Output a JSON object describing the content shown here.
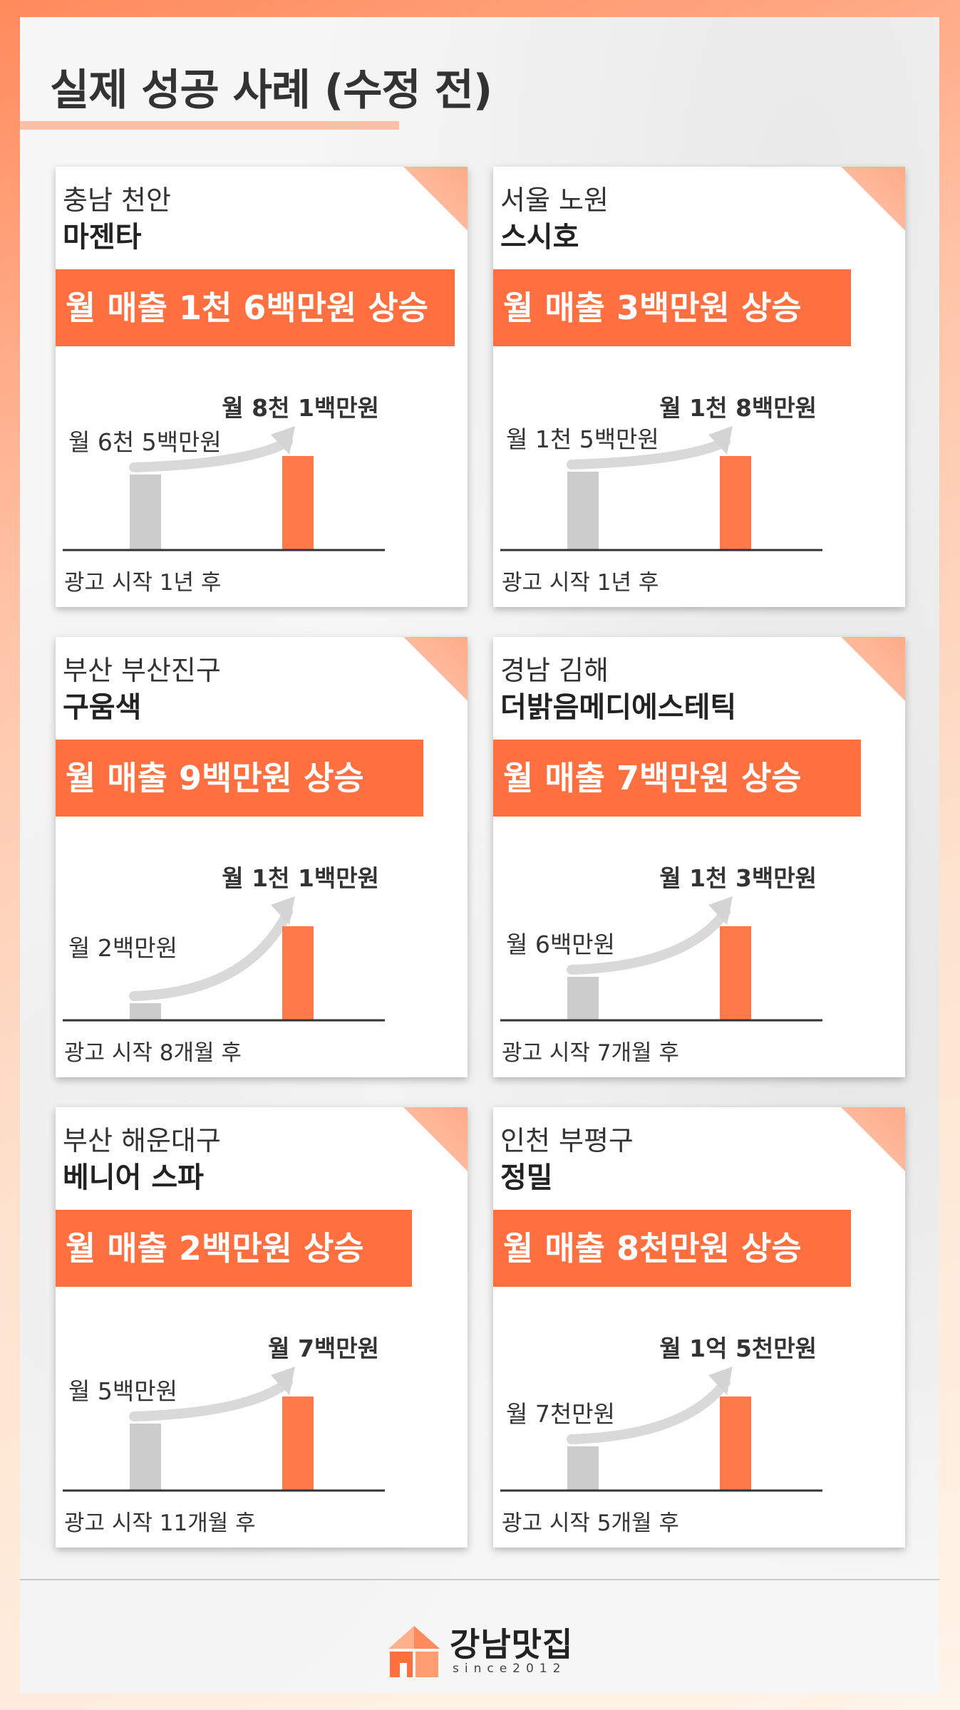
{
  "page": {
    "title": "실제 성공 사례 (수정 전)"
  },
  "colors": {
    "accent": "#ff6f3f",
    "accent_light": "#ffb99c",
    "bar_before": "#cccccc",
    "bar_after": "#ff7a4a"
  },
  "cards": [
    {
      "location": "충남 천안",
      "business": "마젠타",
      "headline": "월 매출 1천 6백만원 상승",
      "before_label": "월 6천 5백만원",
      "after_label": "월 8천 1백만원",
      "before_value": 6500,
      "after_value": 8100,
      "period": "광고 시작 1년 후"
    },
    {
      "location": "서울 노원",
      "business": "스시호",
      "headline": "월 매출 3백만원 상승",
      "before_label": "월 1천 5백만원",
      "after_label": "월 1천 8백만원",
      "before_value": 1500,
      "after_value": 1800,
      "period": "광고 시작 1년 후"
    },
    {
      "location": "부산 부산진구",
      "business": "구움색",
      "headline": "월 매출 9백만원 상승",
      "before_label": "월 2백만원",
      "after_label": "월 1천 1백만원",
      "before_value": 200,
      "after_value": 1100,
      "period": "광고 시작 8개월 후"
    },
    {
      "location": "경남 김해",
      "business": "더밝음메디에스테틱",
      "headline": "월 매출 7백만원 상승",
      "before_label": "월 6백만원",
      "after_label": "월 1천 3백만원",
      "before_value": 600,
      "after_value": 1300,
      "period": "광고 시작 7개월 후"
    },
    {
      "location": "부산 해운대구",
      "business": "베니어 스파",
      "headline": "월 매출 2백만원 상승",
      "before_label": "월 5백만원",
      "after_label": "월 7백만원",
      "before_value": 500,
      "after_value": 700,
      "period": "광고 시작 11개월 후"
    },
    {
      "location": "인천 부평구",
      "business": "정밀",
      "headline": "월 매출 8천만원 상승",
      "before_label": "월 7천만원",
      "after_label": "월 1억 5천만원",
      "before_value": 7000,
      "after_value": 15000,
      "period": "광고 시작 5개월 후"
    }
  ],
  "logo": {
    "name": "강남맛집",
    "since": "since2012",
    "icon": "building-logo-icon"
  }
}
